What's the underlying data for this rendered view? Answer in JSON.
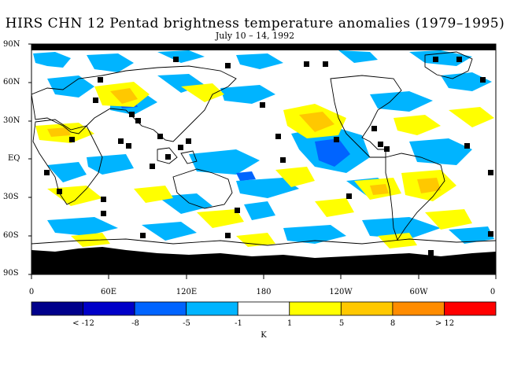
{
  "title": "HIRS CHN 12 Pentad brightness temperature anomalies (1979–1995)",
  "subtitle": "July 10 – 14, 1992",
  "map": {
    "lat_labels": [
      "90N",
      "60N",
      "30N",
      "EQ",
      "30S",
      "60S",
      "90S"
    ],
    "lon_labels": [
      "0",
      "60E",
      "120E",
      "180",
      "120W",
      "60W",
      "0"
    ],
    "missing_data_color": "#000000"
  },
  "colorbar": {
    "unit": "K",
    "labels": [
      "< -12",
      "-8",
      "-5",
      "-1",
      "1",
      "5",
      "8",
      "> 12"
    ],
    "colors": [
      "#00008b",
      "#0000c8",
      "#0064ff",
      "#00b4ff",
      "#ffffff",
      "#ffff00",
      "#ffc800",
      "#ff8c00",
      "#ff0000"
    ]
  }
}
